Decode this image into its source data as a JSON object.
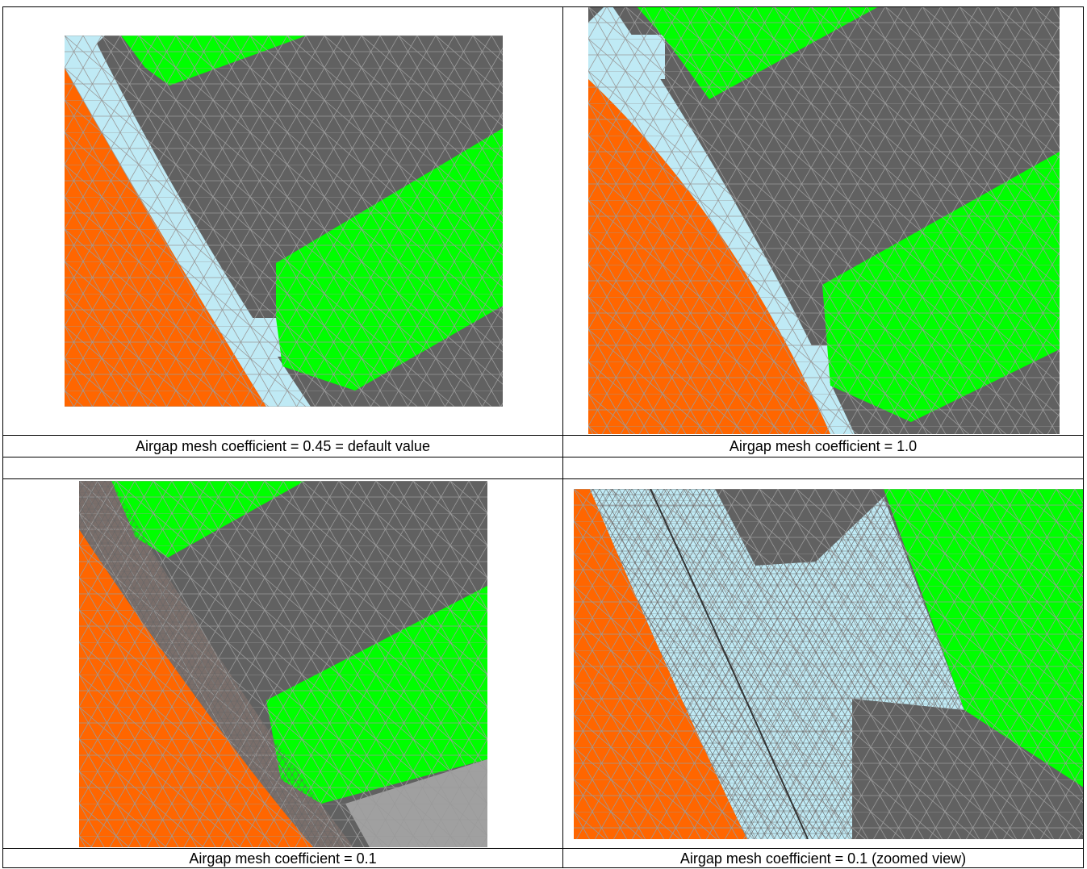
{
  "table": {
    "rows": [
      [
        "Airgap mesh coefficient = 0.45 = default value",
        "Airgap mesh coefficient = 1.0"
      ],
      [
        "Airgap mesh coefficient = 0.1",
        "Airgap mesh coefficient = 0.1 (zoomed view)"
      ]
    ]
  }
}
